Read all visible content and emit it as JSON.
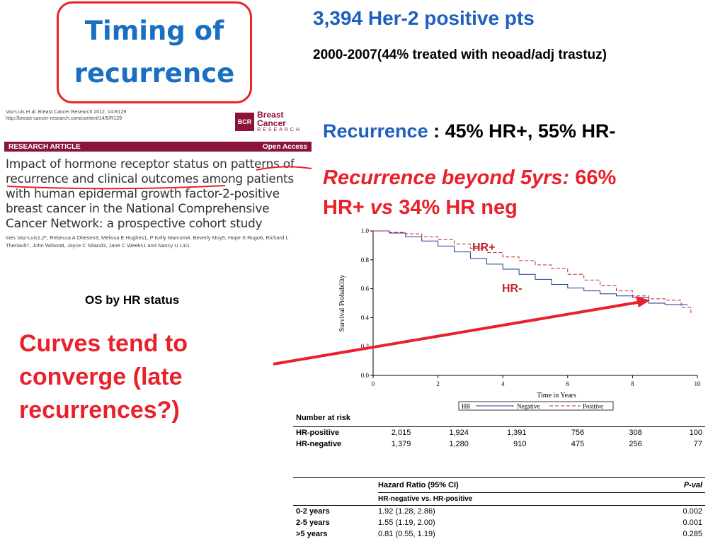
{
  "slide": {
    "title_line1": "Timing of",
    "title_line2": "recurrence",
    "header1": "3,394 Her-2 positive  pts",
    "header2": "2000-2007(44% treated with neoad/adj trastuz)",
    "recurrence_label": "Recurrence",
    "recurrence_value": " : 45% HR+, 55% HR-",
    "beyond_label": "Recurrence beyond 5yrs:",
    "beyond_value": " 66%",
    "beyond_line2a": "HR+ ",
    "beyond_vs": "vs",
    "beyond_line2b": " 34% HR neg",
    "os_label": "OS by HR status",
    "curves_line1": "Curves tend to",
    "curves_line2": "converge (late",
    "curves_line3": "recurrences?)"
  },
  "paper": {
    "citation_line1": "Vaz-Luis et al. Breast Cancer Research 2012, 14:R129",
    "citation_line2": "http://breast-cancer-research.com/content/14/5/R129",
    "journal_icon": "BCR",
    "journal_name": "Breast Cancer",
    "journal_sub": "RESEARCH",
    "article_type": "RESEARCH ARTICLE",
    "access": "Open Access",
    "title": "Impact of hormone receptor status on patterns of recurrence and clinical outcomes among patients with human epidermal growth factor-2-positive breast cancer in the National Comprehensive Cancer Network: a prospective cohort study",
    "authors": "Ines Vaz-Luis1,2*, Rebecca A Ottesen3, Melissa E Hughes1, P Kelly Marcom4, Beverly Moy5, Hope S Rugo6, Richard L Theriault7, John Wilson8, Joyce C Niland3, Jane C Weeks1 and Nancy U Lin1",
    "underline_color": "#e8212b"
  },
  "chart_data": {
    "type": "line",
    "xlabel": "Time in Years",
    "ylabel": "Survival Probability",
    "xlim": [
      0,
      10
    ],
    "ylim": [
      0,
      1
    ],
    "x_ticks": [
      "0",
      "2",
      "4",
      "6",
      "8",
      "10"
    ],
    "y_ticks": [
      "0.0",
      "0.2",
      "0.4",
      "0.6",
      "0.8",
      "1.0"
    ],
    "legend_title": "HR",
    "legend_position": "bottom",
    "annotations": [
      "HR+",
      "HR-"
    ],
    "series": [
      {
        "name": "Negative",
        "style": "solid",
        "color": "#1f3a93",
        "x": [
          0,
          0.5,
          1,
          1.5,
          2,
          2.5,
          3,
          3.5,
          4,
          4.5,
          5,
          5.5,
          6,
          6.5,
          7,
          7.5,
          8,
          8.5,
          9,
          9.5,
          9.7
        ],
        "y": [
          1.0,
          0.985,
          0.96,
          0.93,
          0.895,
          0.855,
          0.81,
          0.77,
          0.735,
          0.7,
          0.665,
          0.63,
          0.605,
          0.585,
          0.565,
          0.55,
          0.54,
          0.5,
          0.49,
          0.49,
          0.49
        ]
      },
      {
        "name": "Positive",
        "style": "dashed",
        "color": "#c0242d",
        "x": [
          0,
          0.5,
          1,
          1.5,
          2,
          2.5,
          3,
          3.5,
          4,
          4.5,
          5,
          5.5,
          6,
          6.5,
          7,
          7.5,
          8,
          8.5,
          9,
          9.5,
          9.8
        ],
        "y": [
          1.0,
          0.99,
          0.98,
          0.96,
          0.94,
          0.91,
          0.88,
          0.85,
          0.82,
          0.795,
          0.765,
          0.74,
          0.7,
          0.66,
          0.62,
          0.585,
          0.55,
          0.53,
          0.52,
          0.47,
          0.42
        ]
      }
    ]
  },
  "risk_table": {
    "title": "Number at risk",
    "rows": [
      {
        "label": "HR-positive",
        "values": [
          "2,015",
          "1,924",
          "1,391",
          "756",
          "308",
          "100"
        ]
      },
      {
        "label": "HR-negative",
        "values": [
          "1,379",
          "1,280",
          "910",
          "475",
          "256",
          "77"
        ]
      }
    ]
  },
  "hr_table": {
    "col_hr": "Hazard Ratio (95% CI)",
    "col_p": "P-val",
    "subheader": "HR-negative vs. HR-positive",
    "rows": [
      {
        "period": "0-2 years",
        "hr": "1.92 (1.28, 2.86)",
        "p": "0.002"
      },
      {
        "period": "2-5 years",
        "hr": "1.55 (1.19, 2.00)",
        "p": "0.001"
      },
      {
        "period": ">5 years",
        "hr": "0.81 (0.55, 1.19)",
        "p": "0.285"
      }
    ]
  }
}
